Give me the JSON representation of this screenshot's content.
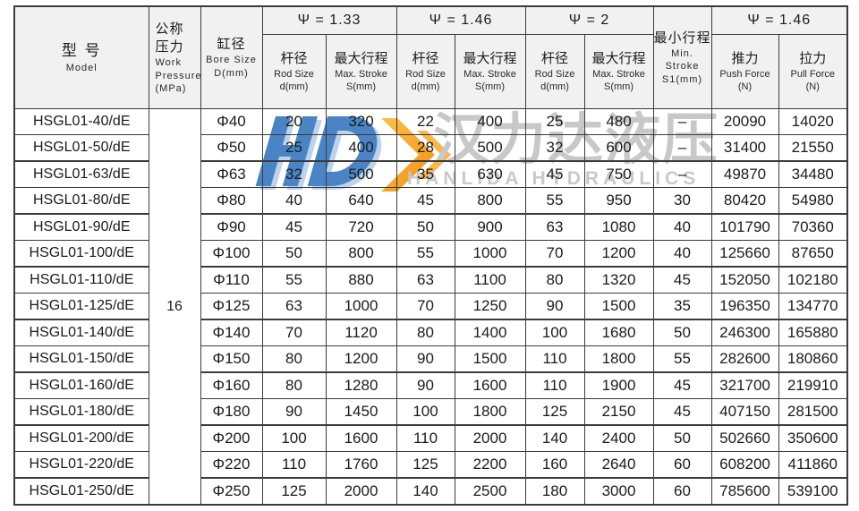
{
  "watermark": {
    "cn_text": "汉力达液压",
    "en_text": "HANLIDA HYDRAULICS",
    "colors": {
      "logo_blue": "#4b84c4",
      "logo_light_blue": "#bdd3eb",
      "logo_yellow": "#f5a82c",
      "gray_text": "#c8c8c8"
    }
  },
  "style_colors": {
    "border": "#3b3b3b",
    "header_bg": "#f1f1f1"
  },
  "header": {
    "model_cn": "型 号",
    "model_en": "Model",
    "pressure_cn1": "公称",
    "pressure_cn2": "压力",
    "pressure_en1": "Work",
    "pressure_en2": "Pressure",
    "pressure_en3": "(MPa)",
    "bore_cn": "缸径",
    "bore_en1": "Bore Size",
    "bore_en2": "D(mm)",
    "psi1": "Ψ = 1.33",
    "psi2": "Ψ = 1.46",
    "psi3": "Ψ = 2",
    "psi4": "Ψ = 1.46",
    "rod_cn": "杆径",
    "rod_en1": "Rod Size",
    "rod_en2": "d(mm)",
    "stroke_cn": "最大行程",
    "stroke_en1": "Max. Stroke",
    "stroke_en2": "S(mm)",
    "minstroke_cn": "最小行程",
    "minstroke_en1": "Min. Stroke",
    "minstroke_en2": "S1(mm)",
    "push_cn": "推力",
    "push_en1": "Push Force",
    "push_en2": "(N)",
    "pull_cn": "拉力",
    "pull_en1": "Pull Force",
    "pull_en2": "(N)"
  },
  "pressure_value": "16",
  "columns": [
    "model",
    "bore",
    "rod133",
    "stroke133",
    "rod146",
    "stroke146",
    "rod2",
    "stroke2",
    "min_stroke",
    "push",
    "pull"
  ],
  "rows": [
    {
      "model": "HSGL01-40/dE",
      "bore": "Φ40",
      "rod133": "20",
      "stroke133": "320",
      "rod146": "22",
      "stroke146": "400",
      "rod2": "25",
      "stroke2": "480",
      "min_stroke": "–",
      "push": "20090",
      "pull": "14020"
    },
    {
      "model": "HSGL01-50/dE",
      "bore": "Φ50",
      "rod133": "25",
      "stroke133": "400",
      "rod146": "28",
      "stroke146": "500",
      "rod2": "32",
      "stroke2": "600",
      "min_stroke": "–",
      "push": "31400",
      "pull": "21550"
    },
    {
      "model": "HSGL01-63/dE",
      "bore": "Φ63",
      "rod133": "32",
      "stroke133": "500",
      "rod146": "35",
      "stroke146": "630",
      "rod2": "45",
      "stroke2": "750",
      "min_stroke": "–",
      "push": "49870",
      "pull": "34480"
    },
    {
      "model": "HSGL01-80/dE",
      "bore": "Φ80",
      "rod133": "40",
      "stroke133": "640",
      "rod146": "45",
      "stroke146": "800",
      "rod2": "55",
      "stroke2": "950",
      "min_stroke": "30",
      "push": "80420",
      "pull": "54980"
    },
    {
      "model": "HSGL01-90/dE",
      "bore": "Φ90",
      "rod133": "45",
      "stroke133": "720",
      "rod146": "50",
      "stroke146": "900",
      "rod2": "63",
      "stroke2": "1080",
      "min_stroke": "40",
      "push": "101790",
      "pull": "70360"
    },
    {
      "model": "HSGL01-100/dE",
      "bore": "Φ100",
      "rod133": "50",
      "stroke133": "800",
      "rod146": "55",
      "stroke146": "1000",
      "rod2": "70",
      "stroke2": "1200",
      "min_stroke": "40",
      "push": "125660",
      "pull": "87650"
    },
    {
      "model": "HSGL01-110/dE",
      "bore": "Φ110",
      "rod133": "55",
      "stroke133": "880",
      "rod146": "63",
      "stroke146": "1100",
      "rod2": "80",
      "stroke2": "1320",
      "min_stroke": "45",
      "push": "152050",
      "pull": "102180"
    },
    {
      "model": "HSGL01-125/dE",
      "bore": "Φ125",
      "rod133": "63",
      "stroke133": "1000",
      "rod146": "70",
      "stroke146": "1250",
      "rod2": "90",
      "stroke2": "1500",
      "min_stroke": "35",
      "push": "196350",
      "pull": "134770"
    },
    {
      "model": "HSGL01-140/dE",
      "bore": "Φ140",
      "rod133": "70",
      "stroke133": "1120",
      "rod146": "80",
      "stroke146": "1400",
      "rod2": "100",
      "stroke2": "1680",
      "min_stroke": "50",
      "push": "246300",
      "pull": "165880"
    },
    {
      "model": "HSGL01-150/dE",
      "bore": "Φ150",
      "rod133": "80",
      "stroke133": "1200",
      "rod146": "90",
      "stroke146": "1500",
      "rod2": "110",
      "stroke2": "1800",
      "min_stroke": "55",
      "push": "282600",
      "pull": "180860"
    },
    {
      "model": "HSGL01-160/dE",
      "bore": "Φ160",
      "rod133": "80",
      "stroke133": "1280",
      "rod146": "90",
      "stroke146": "1600",
      "rod2": "110",
      "stroke2": "1900",
      "min_stroke": "45",
      "push": "321700",
      "pull": "219910"
    },
    {
      "model": "HSGL01-180/dE",
      "bore": "Φ180",
      "rod133": "90",
      "stroke133": "1450",
      "rod146": "100",
      "stroke146": "1800",
      "rod2": "125",
      "stroke2": "2150",
      "min_stroke": "45",
      "push": "407150",
      "pull": "281500"
    },
    {
      "model": "HSGL01-200/dE",
      "bore": "Φ200",
      "rod133": "100",
      "stroke133": "1600",
      "rod146": "110",
      "stroke146": "2000",
      "rod2": "140",
      "stroke2": "2400",
      "min_stroke": "50",
      "push": "502660",
      "pull": "350600"
    },
    {
      "model": "HSGL01-220/dE",
      "bore": "Φ220",
      "rod133": "110",
      "stroke133": "1760",
      "rod146": "125",
      "stroke146": "2200",
      "rod2": "160",
      "stroke2": "2640",
      "min_stroke": "60",
      "push": "608200",
      "pull": "411860"
    },
    {
      "model": "HSGL01-250/dE",
      "bore": "Φ250",
      "rod133": "125",
      "stroke133": "2000",
      "rod146": "140",
      "stroke146": "2500",
      "rod2": "180",
      "stroke2": "3000",
      "min_stroke": "60",
      "push": "785600",
      "pull": "539100"
    }
  ]
}
